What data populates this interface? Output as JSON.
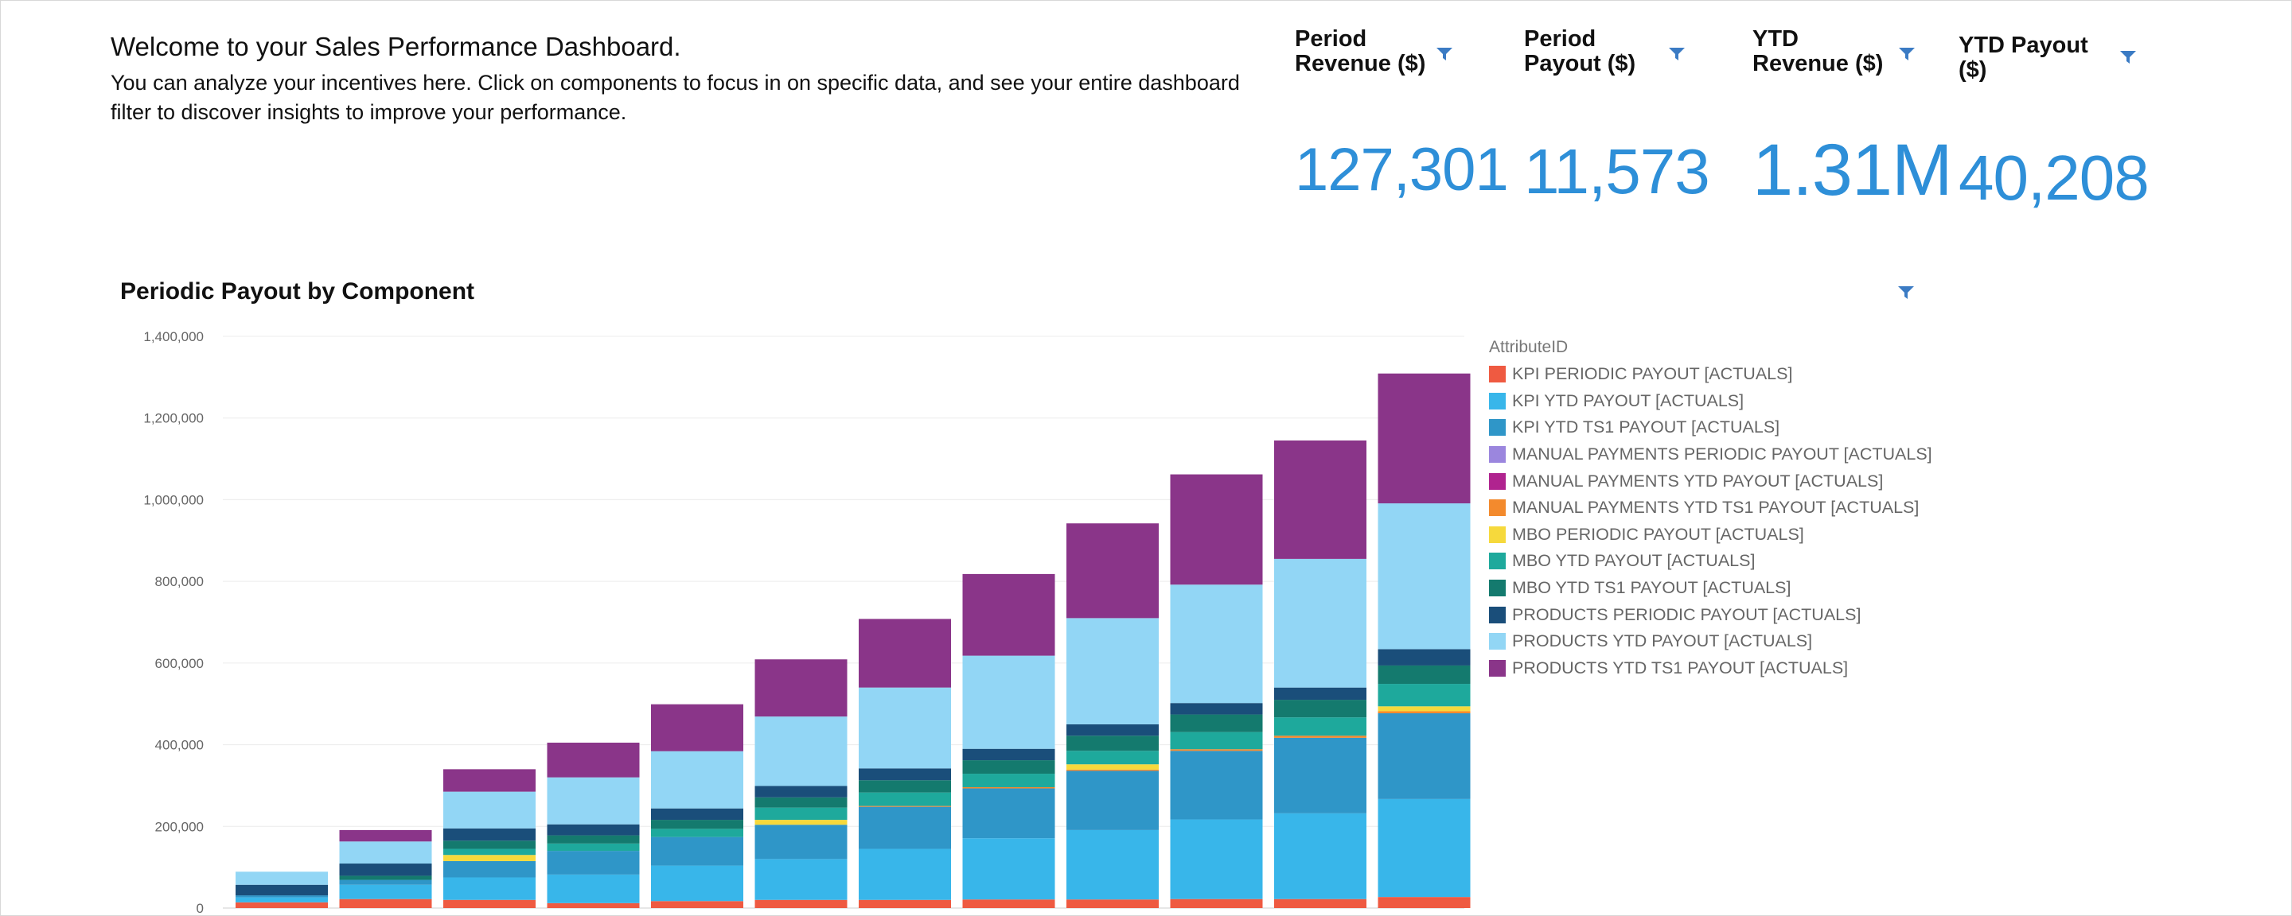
{
  "header": {
    "title": "Welcome to your Sales Performance Dashboard.",
    "description": "You can analyze your incentives here. Click on components to focus in on specific data, and see your entire dashboard filter to discover insights to improve your performance."
  },
  "kpis": [
    {
      "line1": "Period",
      "line2": "Revenue ($)",
      "value": "127,301"
    },
    {
      "line1": "Period",
      "line2": "Payout ($)",
      "value": "11,573"
    },
    {
      "line1": "YTD",
      "line2": "Revenue ($)",
      "value": "1.31M"
    },
    {
      "line1": "YTD Payout",
      "line2": "($)",
      "value": "40,208"
    }
  ],
  "accent_color": "#2e8fd8",
  "icons": {
    "filter": "filter-funnel-icon"
  },
  "chart_title": "Periodic Payout by Component",
  "chart_data": {
    "type": "bar",
    "stacked": true,
    "title": "Periodic Payout by Component",
    "xlabel": "",
    "ylabel": "",
    "ylim": [
      0,
      1400000
    ],
    "yticks": [
      0,
      200000,
      400000,
      600000,
      800000,
      1000000,
      1200000,
      1400000
    ],
    "ytick_labels": [
      "0",
      "200,000",
      "400,000",
      "600,000",
      "800,000",
      "1,000,000",
      "1,200,000",
      "1,400,000"
    ],
    "grid": true,
    "legend_position": "right",
    "legend_title": "AttributeID",
    "categories": [
      "",
      "",
      "",
      "",
      "",
      "",
      "",
      "",
      "",
      "",
      "",
      ""
    ],
    "series": [
      {
        "name": "KPI PERIODIC PAYOUT [ACTUALS]",
        "color": "#ef5a41",
        "values": [
          14000,
          22000,
          20000,
          12000,
          17000,
          20000,
          20000,
          21000,
          21000,
          22000,
          22000,
          27000
        ]
      },
      {
        "name": "KPI YTD PAYOUT [ACTUALS]",
        "color": "#38b6ea",
        "values": [
          12000,
          35000,
          55000,
          70000,
          87000,
          100000,
          125000,
          150000,
          170000,
          195000,
          210000,
          240000
        ]
      },
      {
        "name": "KPI YTD TS1 PAYOUT [ACTUALS]",
        "color": "#2f96c8",
        "values": [
          5000,
          12000,
          40000,
          58000,
          70000,
          84000,
          103000,
          122000,
          145000,
          168000,
          185000,
          210000
        ]
      },
      {
        "name": "MANUAL PAYMENTS PERIODIC PAYOUT [ACTUALS]",
        "color": "#9b86de",
        "values": [
          0,
          0,
          0,
          0,
          0,
          0,
          0,
          0,
          0,
          0,
          0,
          0
        ]
      },
      {
        "name": "MANUAL PAYMENTS YTD PAYOUT [ACTUALS]",
        "color": "#b0238f",
        "values": [
          0,
          0,
          0,
          0,
          0,
          0,
          0,
          0,
          0,
          0,
          0,
          0
        ]
      },
      {
        "name": "MANUAL PAYMENTS YTD TS1 PAYOUT [ACTUALS]",
        "color": "#f38a2d",
        "values": [
          0,
          0,
          0,
          0,
          0,
          0,
          2000,
          3000,
          3000,
          4000,
          5000,
          5000
        ]
      },
      {
        "name": "MBO PERIODIC PAYOUT [ACTUALS]",
        "color": "#f6d93c",
        "values": [
          0,
          0,
          15000,
          0,
          0,
          12000,
          0,
          0,
          13000,
          0,
          0,
          12000
        ]
      },
      {
        "name": "MBO YTD PAYOUT [ACTUALS]",
        "color": "#1ea99c",
        "values": [
          0,
          0,
          15000,
          18000,
          20000,
          30000,
          33000,
          33000,
          33000,
          42000,
          45000,
          55000
        ]
      },
      {
        "name": "MBO YTD TS1 PAYOUT [ACTUALS]",
        "color": "#147a6e",
        "values": [
          0,
          10000,
          20000,
          20000,
          22000,
          25000,
          30000,
          33000,
          37000,
          43000,
          43000,
          45000
        ]
      },
      {
        "name": "PRODUCTS PERIODIC PAYOUT [ACTUALS]",
        "color": "#1a4e7a",
        "values": [
          26000,
          30000,
          30000,
          27000,
          28000,
          28000,
          29000,
          28000,
          28000,
          28000,
          30000,
          40000
        ]
      },
      {
        "name": "PRODUCTS YTD PAYOUT [ACTUALS]",
        "color": "#92d6f5",
        "values": [
          32000,
          54000,
          90000,
          115000,
          140000,
          170000,
          198000,
          228000,
          260000,
          290000,
          315000,
          357000
        ]
      },
      {
        "name": "PRODUCTS YTD TS1 PAYOUT [ACTUALS]",
        "color": "#8a3589",
        "values": [
          0,
          28000,
          55000,
          85000,
          115000,
          140000,
          168000,
          200000,
          232000,
          270000,
          290000,
          318000
        ]
      }
    ]
  }
}
